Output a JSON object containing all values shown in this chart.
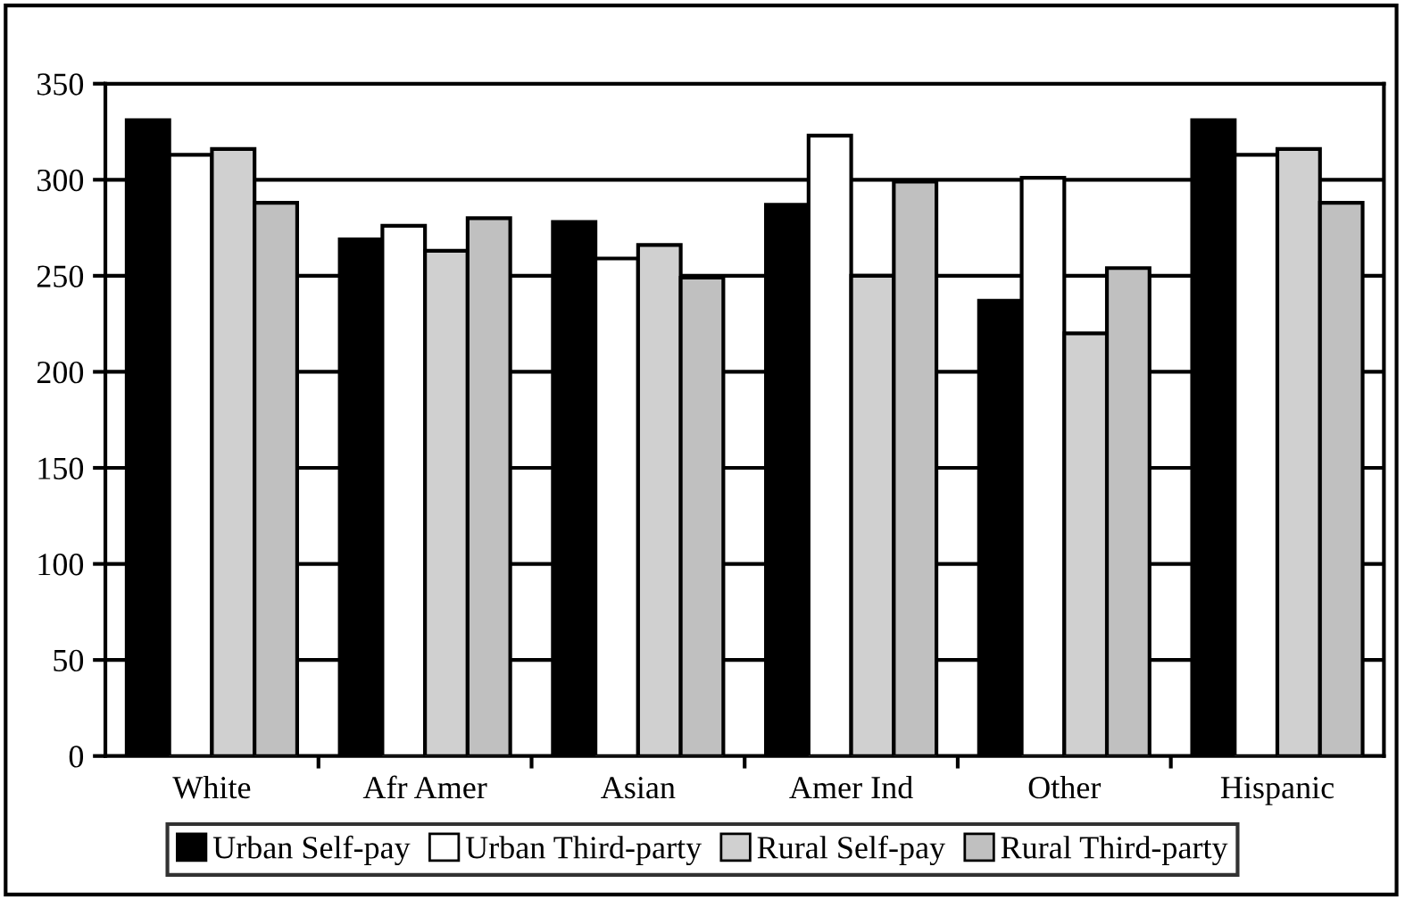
{
  "chart_data": {
    "type": "bar",
    "categories": [
      "White",
      "Afr Amer",
      "Asian",
      "Amer Ind",
      "Other",
      "Hispanic"
    ],
    "series": [
      {
        "name": "Urban Self-pay",
        "color": "#000000",
        "values": [
          331,
          269,
          278,
          287,
          237,
          331
        ]
      },
      {
        "name": "Urban Third-party",
        "color": "#ffffff",
        "values": [
          313,
          276,
          259,
          323,
          301,
          313
        ]
      },
      {
        "name": "Rural Self-pay",
        "color": "#d0d0d0",
        "values": [
          316,
          263,
          266,
          250,
          220,
          316
        ]
      },
      {
        "name": "Rural Third-party",
        "color": "#c0c0c0",
        "values": [
          288,
          280,
          249,
          299,
          254,
          288
        ]
      }
    ],
    "ylim": [
      0,
      350
    ],
    "yticks": [
      0,
      50,
      100,
      150,
      200,
      250,
      300,
      350
    ],
    "grid": "y",
    "legend": "bottom"
  }
}
